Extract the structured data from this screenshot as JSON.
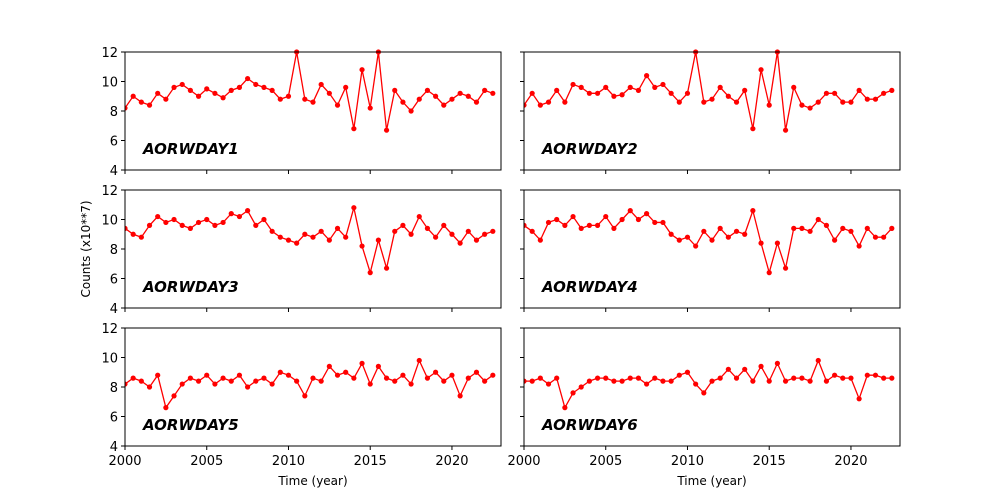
{
  "chart_data": {
    "type": "line",
    "xlabel": "Time (year)",
    "ylabel": "Counts (x10**7)",
    "xlim": [
      2000,
      2023
    ],
    "ylim": [
      4,
      12
    ],
    "xticks": [
      2000,
      2005,
      2010,
      2015,
      2020
    ],
    "yticks": [
      4,
      6,
      8,
      10,
      12
    ],
    "x_start": 2000,
    "x_step": 0.5,
    "color": "#ff0000",
    "panels": [
      {
        "name": "AORWDAY1",
        "values": [
          8.2,
          9.0,
          8.6,
          8.4,
          9.2,
          8.8,
          9.6,
          9.8,
          9.4,
          9.0,
          9.5,
          9.2,
          8.9,
          9.4,
          9.6,
          10.2,
          9.8,
          9.6,
          9.4,
          8.8,
          9.0,
          12.0,
          8.8,
          8.6,
          9.8,
          9.2,
          8.4,
          9.6,
          6.8,
          10.8,
          8.2,
          12.0,
          6.7,
          9.4,
          8.6,
          8.0,
          8.8,
          9.4,
          9.0,
          8.4,
          8.8,
          9.2,
          9.0,
          8.6,
          9.4,
          9.2
        ]
      },
      {
        "name": "AORWDAY2",
        "values": [
          8.4,
          9.2,
          8.4,
          8.6,
          9.4,
          8.6,
          9.8,
          9.6,
          9.2,
          9.2,
          9.6,
          9.0,
          9.1,
          9.6,
          9.4,
          10.4,
          9.6,
          9.8,
          9.2,
          8.6,
          9.2,
          12.0,
          8.6,
          8.8,
          9.6,
          9.0,
          8.6,
          9.4,
          6.8,
          10.8,
          8.4,
          12.0,
          6.7,
          9.6,
          8.4,
          8.2,
          8.6,
          9.2,
          9.2,
          8.6,
          8.6,
          9.4,
          8.8,
          8.8,
          9.2,
          9.4
        ]
      },
      {
        "name": "AORWDAY3",
        "values": [
          9.4,
          9.0,
          8.8,
          9.6,
          10.2,
          9.8,
          10.0,
          9.6,
          9.4,
          9.8,
          10.0,
          9.6,
          9.8,
          10.4,
          10.2,
          10.6,
          9.6,
          10.0,
          9.2,
          8.8,
          8.6,
          8.4,
          9.0,
          8.8,
          9.2,
          8.6,
          9.4,
          8.8,
          10.8,
          8.2,
          6.4,
          8.6,
          6.7,
          9.2,
          9.6,
          9.0,
          10.2,
          9.4,
          8.8,
          9.6,
          9.0,
          8.4,
          9.2,
          8.6,
          9.0,
          9.2
        ]
      },
      {
        "name": "AORWDAY4",
        "values": [
          9.6,
          9.2,
          8.6,
          9.8,
          10.0,
          9.6,
          10.2,
          9.4,
          9.6,
          9.6,
          10.2,
          9.4,
          10.0,
          10.6,
          10.0,
          10.4,
          9.8,
          9.8,
          9.0,
          8.6,
          8.8,
          8.2,
          9.2,
          8.6,
          9.4,
          8.8,
          9.2,
          9.0,
          10.6,
          8.4,
          6.4,
          8.4,
          6.7,
          9.4,
          9.4,
          9.2,
          10.0,
          9.6,
          8.6,
          9.4,
          9.2,
          8.2,
          9.4,
          8.8,
          8.8,
          9.4
        ]
      },
      {
        "name": "AORWDAY5",
        "values": [
          8.2,
          8.6,
          8.4,
          8.0,
          8.8,
          6.6,
          7.4,
          8.2,
          8.6,
          8.4,
          8.8,
          8.2,
          8.6,
          8.4,
          8.8,
          8.0,
          8.4,
          8.6,
          8.2,
          9.0,
          8.8,
          8.4,
          7.4,
          8.6,
          8.4,
          9.4,
          8.8,
          9.0,
          8.6,
          9.6,
          8.2,
          9.4,
          8.6,
          8.4,
          8.8,
          8.2,
          9.8,
          8.6,
          9.0,
          8.4,
          8.8,
          7.4,
          8.6,
          9.0,
          8.4,
          8.8
        ]
      },
      {
        "name": "AORWDAY6",
        "values": [
          8.4,
          8.4,
          8.6,
          8.2,
          8.6,
          6.6,
          7.6,
          8.0,
          8.4,
          8.6,
          8.6,
          8.4,
          8.4,
          8.6,
          8.6,
          8.2,
          8.6,
          8.4,
          8.4,
          8.8,
          9.0,
          8.2,
          7.6,
          8.4,
          8.6,
          9.2,
          8.6,
          9.2,
          8.4,
          9.4,
          8.4,
          9.6,
          8.4,
          8.6,
          8.6,
          8.4,
          9.8,
          8.4,
          8.8,
          8.6,
          8.6,
          7.2,
          8.8,
          8.8,
          8.6,
          8.6
        ]
      }
    ]
  }
}
